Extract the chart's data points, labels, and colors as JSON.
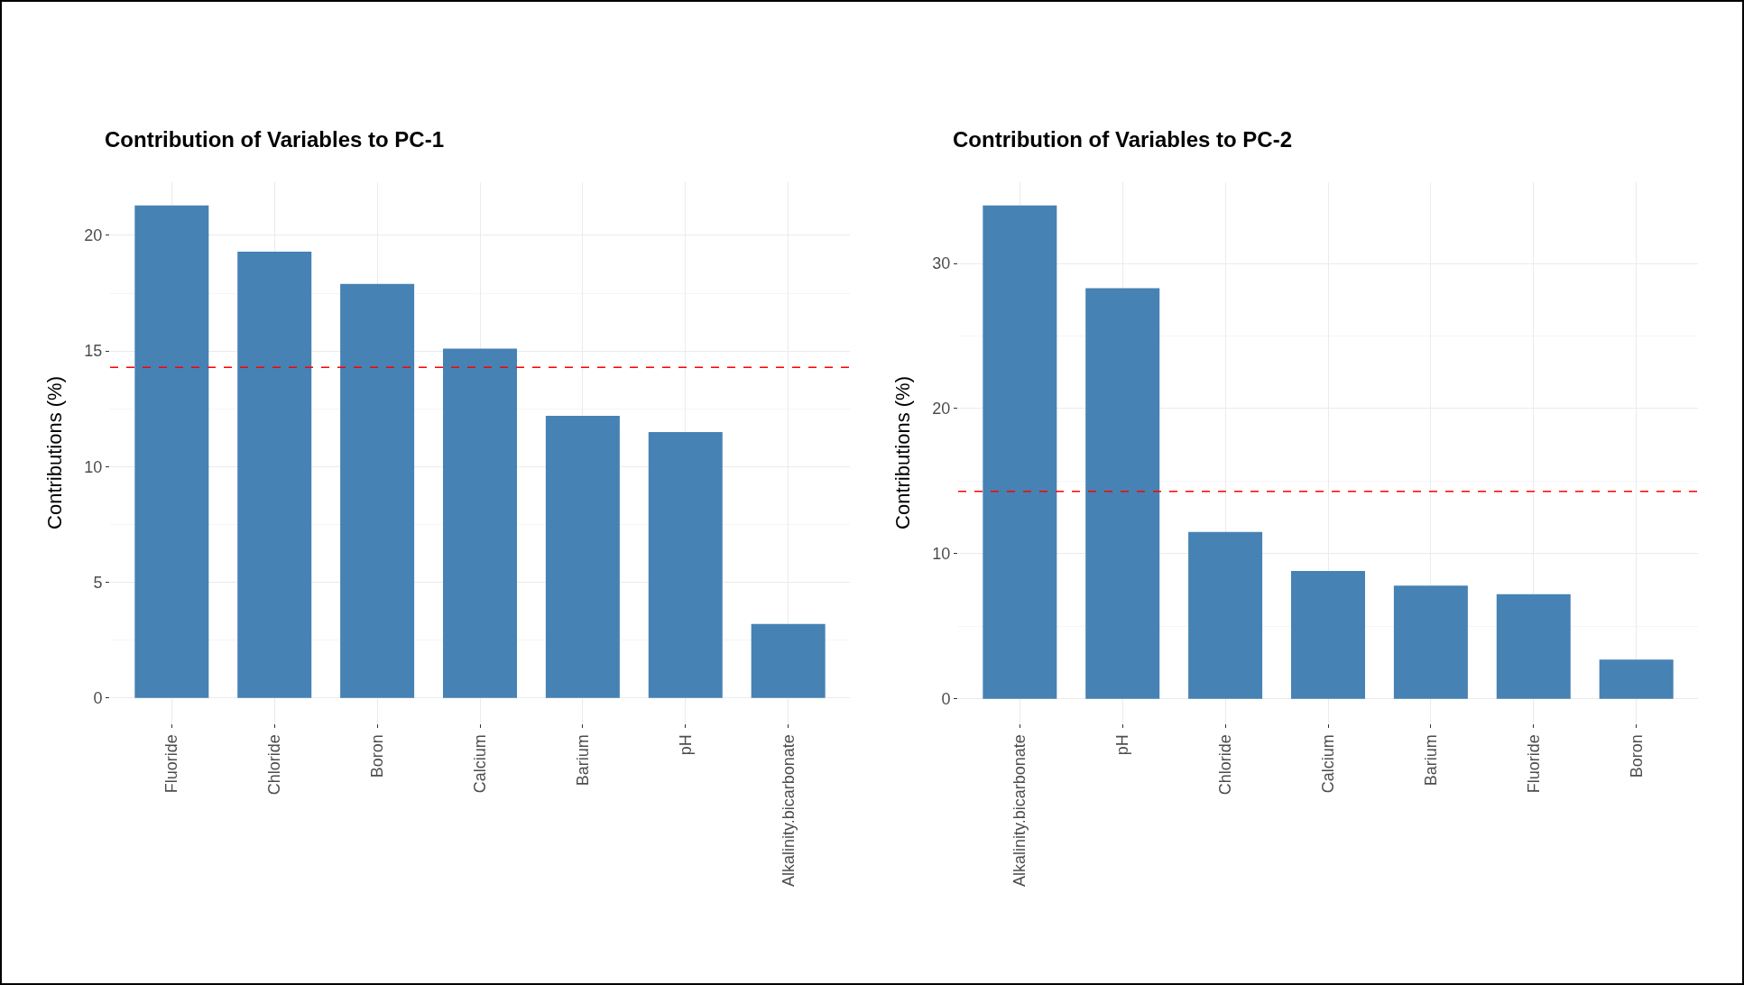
{
  "chart_data": [
    {
      "type": "bar",
      "title": "Contribution of Variables to PC-1",
      "ylabel": "Contributions (%)",
      "categories": [
        "Fluoride",
        "Chloride",
        "Boron",
        "Calcium",
        "Barium",
        "pH",
        "Alkalinity.bicarbonate"
      ],
      "values": [
        21.3,
        19.3,
        17.9,
        15.1,
        12.2,
        11.5,
        3.2
      ],
      "color": "#4682b4",
      "ylim": [
        -1.1,
        22.3
      ],
      "yticks": [
        0,
        5,
        10,
        15,
        20
      ],
      "grid": true,
      "ref_lines": [
        {
          "axis": "y",
          "value": 14.3,
          "color": "#ff0000",
          "line_style": "dashed"
        }
      ]
    },
    {
      "type": "bar",
      "title": "Contribution of Variables to PC-2",
      "ylabel": "Contributions (%)",
      "categories": [
        "Alkalinity.bicarbonate",
        "pH",
        "Chloride",
        "Calcium",
        "Barium",
        "Fluoride",
        "Boron"
      ],
      "values": [
        34.0,
        28.3,
        11.5,
        8.8,
        7.8,
        7.2,
        2.7
      ],
      "color": "#4682b4",
      "ylim": [
        -1.7,
        35.6
      ],
      "yticks": [
        0,
        10,
        20,
        30
      ],
      "grid": true,
      "ref_lines": [
        {
          "axis": "y",
          "value": 14.3,
          "color": "#ff0000",
          "line_style": "dashed"
        }
      ]
    }
  ]
}
